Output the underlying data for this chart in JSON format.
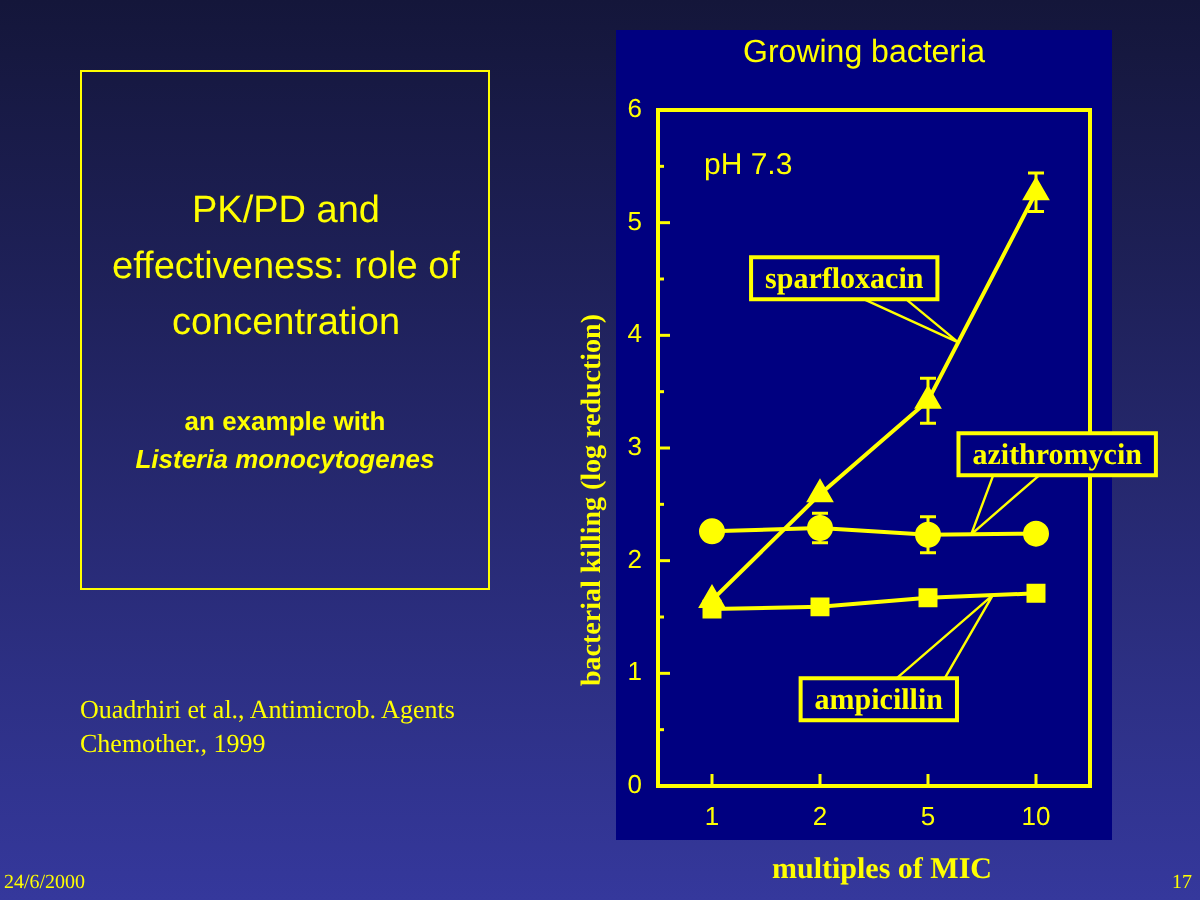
{
  "chart_data": {
    "type": "line",
    "title": "Growing bacteria",
    "xlabel": "multiples of MIC",
    "ylabel": "bacterial killing (log reduction)",
    "categories": [
      "1",
      "2",
      "5",
      "10"
    ],
    "series": [
      {
        "name": "sparfloxacin",
        "color": "#ffff00",
        "marker": "triangle",
        "values": [
          1.65,
          2.59,
          3.42,
          5.27
        ],
        "errors": [
          null,
          null,
          0.2,
          0.17
        ]
      },
      {
        "name": "azithromycin",
        "color": "#ffff00",
        "marker": "circle",
        "values": [
          2.26,
          2.29,
          2.23,
          2.24
        ],
        "errors": [
          null,
          0.13,
          0.16,
          null
        ]
      },
      {
        "name": "ampicillin",
        "color": "#ffff00",
        "marker": "square",
        "values": [
          1.57,
          1.59,
          1.67,
          1.71
        ]
      }
    ],
    "ylim": [
      0,
      6
    ],
    "yticks": [
      0,
      {
        "value": 0.5,
        "label": null
      },
      1,
      {
        "value": 1.5,
        "label": null
      },
      2,
      {
        "value": 2.5,
        "label": null
      },
      3,
      {
        "value": 3.5,
        "label": null
      },
      4,
      {
        "value": 4.5,
        "label": null
      },
      5,
      {
        "value": 5.5,
        "label": null
      },
      6
    ],
    "annotations": [
      "pH 7.3",
      "PK/PD and effectiveness: role of concentration",
      "an example with",
      "Listeria monocytogenes",
      "Ouadrhiri et al., Antimicrob. Agents Chemother., 1999",
      "24/6/2000",
      "17"
    ]
  }
}
